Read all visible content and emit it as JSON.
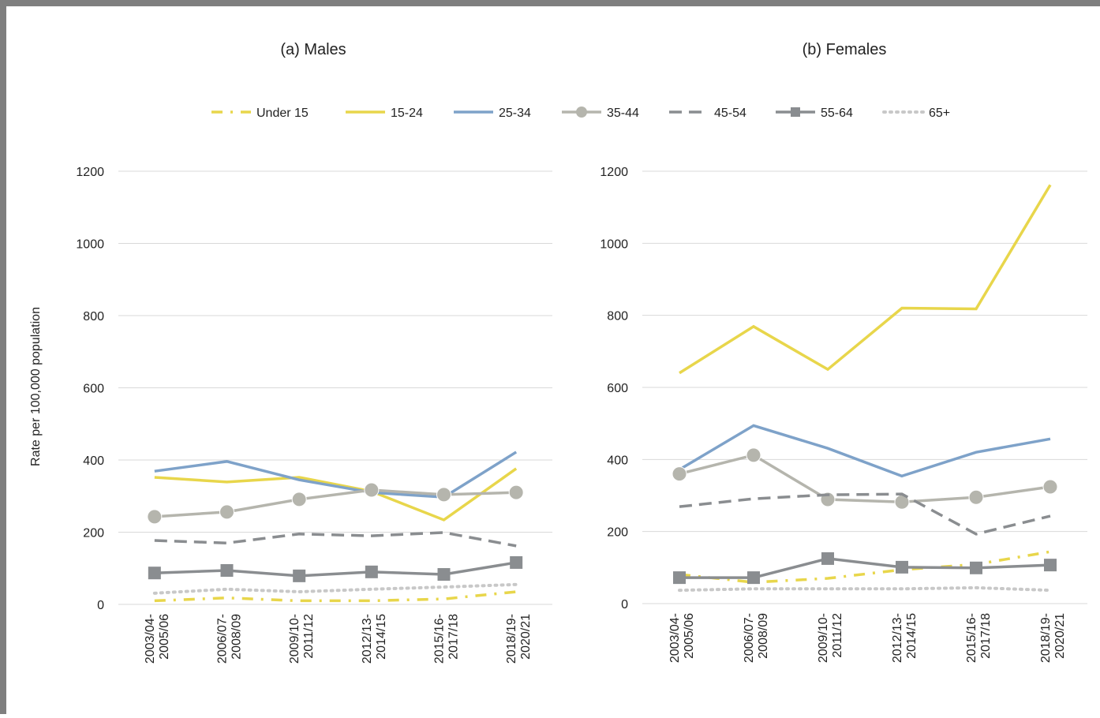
{
  "chart_data": [
    {
      "type": "line",
      "title": "(a) Males",
      "y_label": "Rate per 100,000 population",
      "categories": [
        [
          "2003/04-",
          "2005/06"
        ],
        [
          "2006/07-",
          "2008/09"
        ],
        [
          "2009/10-",
          "2011/12"
        ],
        [
          "2012/13-",
          "2014/15"
        ],
        [
          "2015/16-",
          "2017/18"
        ],
        [
          "2018/19-",
          "2020/21"
        ]
      ],
      "ylim": [
        0,
        1200
      ],
      "yticks": [
        0,
        200,
        400,
        600,
        800,
        1000,
        1200
      ],
      "grid": true,
      "legend": "top",
      "series": [
        {
          "name": "Under 15",
          "color": "#e8d64b",
          "dash": "dash-dot",
          "marker": "none",
          "values": [
            10,
            18,
            10,
            10,
            15,
            35
          ]
        },
        {
          "name": "15-24",
          "color": "#e8d64b",
          "dash": "solid",
          "marker": "none",
          "values": [
            352,
            339,
            352,
            313,
            234,
            376
          ]
        },
        {
          "name": "25-34",
          "color": "#7ea2c9",
          "dash": "solid",
          "marker": "none",
          "values": [
            369,
            396,
            345,
            310,
            297,
            422
          ]
        },
        {
          "name": "35-44",
          "color": "#b5b5ad",
          "dash": "solid",
          "marker": "circle",
          "values": [
            243,
            256,
            291,
            317,
            304,
            310
          ]
        },
        {
          "name": "45-54",
          "color": "#8a8d90",
          "dash": "long-dash",
          "marker": "none",
          "values": [
            177,
            170,
            195,
            190,
            199,
            162
          ]
        },
        {
          "name": "55-64",
          "color": "#8a8d90",
          "dash": "solid",
          "marker": "square",
          "values": [
            87,
            94,
            79,
            90,
            83,
            116
          ]
        },
        {
          "name": "65+",
          "color": "#c8c8c8",
          "dash": "dot",
          "marker": "none",
          "values": [
            31,
            42,
            35,
            42,
            48,
            55
          ]
        }
      ]
    },
    {
      "type": "line",
      "title": "(b) Females",
      "categories": [
        [
          "2003/04-",
          "2005/06"
        ],
        [
          "2006/07-",
          "2008/09"
        ],
        [
          "2009/10-",
          "2011/12"
        ],
        [
          "2012/13-",
          "2014/15"
        ],
        [
          "2015/16-",
          "2017/18"
        ],
        [
          "2018/19-",
          "2020/21"
        ]
      ],
      "ylim": [
        0,
        1200
      ],
      "yticks": [
        0,
        200,
        400,
        600,
        800,
        1000,
        1200
      ],
      "grid": true,
      "series": [
        {
          "name": "Under 15",
          "color": "#e8d64b",
          "dash": "dash-dot",
          "marker": "none",
          "values": [
            81,
            59,
            70,
            94,
            109,
            144
          ]
        },
        {
          "name": "15-24",
          "color": "#e8d64b",
          "dash": "solid",
          "marker": "none",
          "values": [
            640,
            769,
            650,
            820,
            818,
            1162
          ]
        },
        {
          "name": "25-34",
          "color": "#7ea2c9",
          "dash": "solid",
          "marker": "none",
          "values": [
            372,
            494,
            431,
            354,
            420,
            457
          ]
        },
        {
          "name": "35-44",
          "color": "#b5b5ad",
          "dash": "solid",
          "marker": "circle",
          "values": [
            360,
            412,
            289,
            282,
            295,
            324
          ]
        },
        {
          "name": "45-54",
          "color": "#8a8d90",
          "dash": "long-dash",
          "marker": "none",
          "values": [
            269,
            291,
            302,
            304,
            193,
            243
          ]
        },
        {
          "name": "55-64",
          "color": "#8a8d90",
          "dash": "solid",
          "marker": "square",
          "values": [
            72,
            72,
            125,
            101,
            99,
            107
          ]
        },
        {
          "name": "65+",
          "color": "#c8c8c8",
          "dash": "dot",
          "marker": "none",
          "values": [
            37,
            41,
            41,
            41,
            44,
            37
          ]
        }
      ]
    }
  ]
}
